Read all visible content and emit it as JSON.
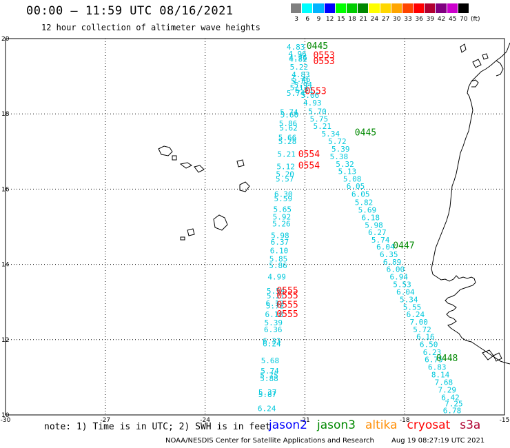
{
  "header": {
    "title": "00:00 – 11:59 UTC 08/16/2021",
    "subtitle": "12 hour collection of altimeter wave heights"
  },
  "color_scale": {
    "unit": "(ft)",
    "bins": [
      {
        "label": "3",
        "color": "#808080"
      },
      {
        "label": "6",
        "color": "#00ffff"
      },
      {
        "label": "9",
        "color": "#00b4ff"
      },
      {
        "label": "12",
        "color": "#0000ff"
      },
      {
        "label": "15",
        "color": "#00ff00"
      },
      {
        "label": "18",
        "color": "#00cc00"
      },
      {
        "label": "21",
        "color": "#008800"
      },
      {
        "label": "24",
        "color": "#ffff00"
      },
      {
        "label": "27",
        "color": "#ffd700"
      },
      {
        "label": "30",
        "color": "#ffa500"
      },
      {
        "label": "33",
        "color": "#ff4500"
      },
      {
        "label": "36",
        "color": "#ff0000"
      },
      {
        "label": "39",
        "color": "#b00030"
      },
      {
        "label": "42",
        "color": "#800080"
      },
      {
        "label": "45",
        "color": "#cc00cc"
      },
      {
        "label": "70",
        "color": "#000000"
      }
    ]
  },
  "chart_data": {
    "type": "scatter",
    "title": "00:00 – 11:59 UTC 08/16/2021",
    "xlim": [
      -30,
      -15
    ],
    "ylim": [
      10,
      20
    ],
    "xticks": [
      "-30",
      "-27",
      "-24",
      "-21",
      "-18",
      "-15"
    ],
    "yticks": [
      "20",
      "18",
      "16",
      "14",
      "12",
      "10"
    ],
    "grid": true,
    "track_color": "#00c8dc",
    "time_color": "#ff0000",
    "time_color_alt": "#008800",
    "swh_points": [
      {
        "x": -21.55,
        "y": 19.78,
        "v": "4.83"
      },
      {
        "x": -21.5,
        "y": 19.6,
        "v": "4.96"
      },
      {
        "x": -21.48,
        "y": 19.5,
        "v": "4.76"
      },
      {
        "x": -21.48,
        "y": 19.46,
        "v": "4.82"
      },
      {
        "x": -21.45,
        "y": 19.25,
        "v": "5.22"
      },
      {
        "x": -21.4,
        "y": 19.05,
        "v": "4.83"
      },
      {
        "x": -21.38,
        "y": 18.92,
        "v": "5.46"
      },
      {
        "x": -21.42,
        "y": 18.87,
        "v": "5.71"
      },
      {
        "x": -21.33,
        "y": 18.77,
        "v": "5.94"
      },
      {
        "x": -21.45,
        "y": 18.7,
        "v": "5.12"
      },
      {
        "x": -21.3,
        "y": 18.63,
        "v": "6.21"
      },
      {
        "x": -21.55,
        "y": 18.55,
        "v": "5.74"
      },
      {
        "x": -21.12,
        "y": 18.5,
        "v": "5.06"
      },
      {
        "x": -21.05,
        "y": 18.3,
        "v": "4.93"
      },
      {
        "x": -20.9,
        "y": 18.07,
        "v": "5.70"
      },
      {
        "x": -20.85,
        "y": 17.87,
        "v": "5.75"
      },
      {
        "x": -21.75,
        "y": 18.05,
        "v": "5.74"
      },
      {
        "x": -21.74,
        "y": 17.98,
        "v": "5.60"
      },
      {
        "x": -20.75,
        "y": 17.67,
        "v": "5.21"
      },
      {
        "x": -21.78,
        "y": 17.75,
        "v": "5.86"
      },
      {
        "x": -21.77,
        "y": 17.63,
        "v": "5.62"
      },
      {
        "x": -20.5,
        "y": 17.47,
        "v": "5.34"
      },
      {
        "x": -21.8,
        "y": 17.37,
        "v": "5.66"
      },
      {
        "x": -21.8,
        "y": 17.27,
        "v": "5.28"
      },
      {
        "x": -20.3,
        "y": 17.27,
        "v": "5.72"
      },
      {
        "x": -20.2,
        "y": 17.07,
        "v": "5.39"
      },
      {
        "x": -21.83,
        "y": 16.93,
        "v": "5.21"
      },
      {
        "x": -20.25,
        "y": 16.87,
        "v": "5.38"
      },
      {
        "x": -20.07,
        "y": 16.67,
        "v": "5.32"
      },
      {
        "x": -21.85,
        "y": 16.6,
        "v": "5.12"
      },
      {
        "x": -20.0,
        "y": 16.47,
        "v": "5.13"
      },
      {
        "x": -21.87,
        "y": 16.4,
        "v": "5.20"
      },
      {
        "x": -21.88,
        "y": 16.27,
        "v": "5.57"
      },
      {
        "x": -19.85,
        "y": 16.27,
        "v": "5.08"
      },
      {
        "x": -19.75,
        "y": 16.08,
        "v": "6.05"
      },
      {
        "x": -21.92,
        "y": 15.87,
        "v": "6.30"
      },
      {
        "x": -19.6,
        "y": 15.87,
        "v": "6.05"
      },
      {
        "x": -21.93,
        "y": 15.75,
        "v": "5.59"
      },
      {
        "x": -19.5,
        "y": 15.65,
        "v": "5.82"
      },
      {
        "x": -21.95,
        "y": 15.47,
        "v": "5.65"
      },
      {
        "x": -19.4,
        "y": 15.45,
        "v": "5.69"
      },
      {
        "x": -21.97,
        "y": 15.27,
        "v": "5.92"
      },
      {
        "x": -19.3,
        "y": 15.25,
        "v": "6.18"
      },
      {
        "x": -21.98,
        "y": 15.08,
        "v": "5.26"
      },
      {
        "x": -19.2,
        "y": 15.05,
        "v": "5.98"
      },
      {
        "x": -19.1,
        "y": 14.85,
        "v": "6.27"
      },
      {
        "x": -22.02,
        "y": 14.77,
        "v": "5.98"
      },
      {
        "x": -19.0,
        "y": 14.65,
        "v": "5.74"
      },
      {
        "x": -22.03,
        "y": 14.6,
        "v": "6.37"
      },
      {
        "x": -18.85,
        "y": 14.47,
        "v": "6.04"
      },
      {
        "x": -22.05,
        "y": 14.37,
        "v": "6.10"
      },
      {
        "x": -18.75,
        "y": 14.27,
        "v": "6.35"
      },
      {
        "x": -22.07,
        "y": 14.15,
        "v": "5.85"
      },
      {
        "x": -18.65,
        "y": 14.07,
        "v": "6.89"
      },
      {
        "x": -22.08,
        "y": 13.97,
        "v": "5.86"
      },
      {
        "x": -18.55,
        "y": 13.87,
        "v": "6.00"
      },
      {
        "x": -18.45,
        "y": 13.67,
        "v": "6.94"
      },
      {
        "x": -22.12,
        "y": 13.67,
        "v": "4.99"
      },
      {
        "x": -18.35,
        "y": 13.47,
        "v": "5.53"
      },
      {
        "x": -22.15,
        "y": 13.3,
        "v": "5.54"
      },
      {
        "x": -18.25,
        "y": 13.27,
        "v": "6.04"
      },
      {
        "x": -22.15,
        "y": 13.17,
        "v": "5.21"
      },
      {
        "x": -18.15,
        "y": 13.07,
        "v": "5.34"
      },
      {
        "x": -22.18,
        "y": 12.97,
        "v": "6.12"
      },
      {
        "x": -22.17,
        "y": 12.9,
        "v": "5.72"
      },
      {
        "x": -18.05,
        "y": 12.87,
        "v": "5.55"
      },
      {
        "x": -22.2,
        "y": 12.67,
        "v": "6.18"
      },
      {
        "x": -17.95,
        "y": 12.67,
        "v": "6.24"
      },
      {
        "x": -22.22,
        "y": 12.45,
        "v": "5.39"
      },
      {
        "x": -17.85,
        "y": 12.47,
        "v": "7.00"
      },
      {
        "x": -22.23,
        "y": 12.27,
        "v": "6.36"
      },
      {
        "x": -17.75,
        "y": 12.27,
        "v": "5.72"
      },
      {
        "x": -17.65,
        "y": 12.08,
        "v": "6.16"
      },
      {
        "x": -22.27,
        "y": 11.97,
        "v": "6.33"
      },
      {
        "x": -22.27,
        "y": 11.9,
        "v": "6.24"
      },
      {
        "x": -17.55,
        "y": 11.88,
        "v": "6.50"
      },
      {
        "x": -17.45,
        "y": 11.67,
        "v": "6.23"
      },
      {
        "x": -17.4,
        "y": 11.47,
        "v": "6.75"
      },
      {
        "x": -22.32,
        "y": 11.45,
        "v": "5.68"
      },
      {
        "x": -17.3,
        "y": 11.27,
        "v": "6.83"
      },
      {
        "x": -22.33,
        "y": 11.17,
        "v": "5.74"
      },
      {
        "x": -22.35,
        "y": 11.05,
        "v": "5.75"
      },
      {
        "x": -17.2,
        "y": 11.07,
        "v": "8.14"
      },
      {
        "x": -22.35,
        "y": 10.97,
        "v": "5.88"
      },
      {
        "x": -17.1,
        "y": 10.87,
        "v": "7.68"
      },
      {
        "x": -17.0,
        "y": 10.67,
        "v": "7.29"
      },
      {
        "x": -22.4,
        "y": 10.6,
        "v": "5.37"
      },
      {
        "x": -22.4,
        "y": 10.55,
        "v": "5.87"
      },
      {
        "x": -16.9,
        "y": 10.47,
        "v": "6.42"
      },
      {
        "x": -16.8,
        "y": 10.3,
        "v": "7.25"
      },
      {
        "x": -22.42,
        "y": 10.17,
        "v": "6.24"
      },
      {
        "x": -16.85,
        "y": 10.12,
        "v": "6.78"
      }
    ],
    "time_labels": [
      {
        "x": -20.95,
        "y": 19.8,
        "t": "0445",
        "sat": "jason3"
      },
      {
        "x": -20.75,
        "y": 19.55,
        "t": "0553",
        "sat": "cryosat"
      },
      {
        "x": -20.75,
        "y": 19.4,
        "t": "0553",
        "sat": "cryosat"
      },
      {
        "x": -21.0,
        "y": 18.6,
        "t": "0553",
        "sat": "cryosat"
      },
      {
        "x": -19.5,
        "y": 17.5,
        "t": "0445",
        "sat": "jason3"
      },
      {
        "x": -21.2,
        "y": 16.92,
        "t": "0554",
        "sat": "cryosat"
      },
      {
        "x": -21.2,
        "y": 16.62,
        "t": "0554",
        "sat": "cryosat"
      },
      {
        "x": -18.35,
        "y": 14.5,
        "t": "0447",
        "sat": "jason3"
      },
      {
        "x": -21.85,
        "y": 13.3,
        "t": "0555",
        "sat": "cryosat"
      },
      {
        "x": -21.85,
        "y": 13.17,
        "t": "0555",
        "sat": "cryosat"
      },
      {
        "x": -21.85,
        "y": 12.92,
        "t": "0555",
        "sat": "cryosat"
      },
      {
        "x": -21.85,
        "y": 12.67,
        "t": "0555",
        "sat": "cryosat"
      },
      {
        "x": -17.05,
        "y": 11.5,
        "t": "0448",
        "sat": "jason3"
      }
    ]
  },
  "notes": {
    "note_text": "note: 1) Time is in UTC; 2) SWH is in feet"
  },
  "satellites": [
    {
      "name": "jason2",
      "color": "#0000ff"
    },
    {
      "name": "jason3",
      "color": "#008800"
    },
    {
      "name": "altika",
      "color": "#ff8c00"
    },
    {
      "name": "cryosat",
      "color": "#ff0000"
    },
    {
      "name": "s3a",
      "color": "#b00030"
    }
  ],
  "footer": {
    "credit": "NOAA/NESDIS Center for Satellite Applications and Research",
    "timestamp": "Aug 19 08:27:19 UTC 2021"
  }
}
